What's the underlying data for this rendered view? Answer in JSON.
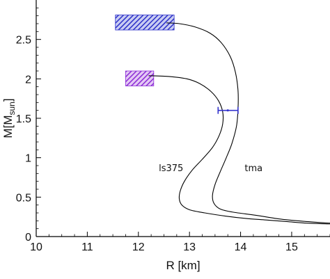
{
  "chart_data": {
    "type": "line",
    "xlabel": "R [km]",
    "ylabel": {
      "main": "M[M",
      "sub": "sun",
      "close": "]"
    },
    "xlim": [
      10,
      15.75
    ],
    "ylim": [
      0,
      3
    ],
    "xticks": [
      "10",
      "11",
      "12",
      "13",
      "14",
      "15"
    ],
    "yticks": [
      "0",
      "0.5",
      "1",
      "1.5",
      "2",
      "2.5"
    ],
    "series": [
      {
        "name": "ls375",
        "color": "#000000",
        "points": [
          [
            15.75,
            0.16
          ],
          [
            15.3,
            0.17
          ],
          [
            14.9,
            0.19
          ],
          [
            14.5,
            0.21
          ],
          [
            14.1,
            0.23
          ],
          [
            13.7,
            0.26
          ],
          [
            13.3,
            0.3
          ],
          [
            13.0,
            0.34
          ],
          [
            12.85,
            0.4
          ],
          [
            12.8,
            0.48
          ],
          [
            12.82,
            0.58
          ],
          [
            12.9,
            0.7
          ],
          [
            13.05,
            0.84
          ],
          [
            13.25,
            0.98
          ],
          [
            13.45,
            1.13
          ],
          [
            13.58,
            1.28
          ],
          [
            13.65,
            1.43
          ],
          [
            13.65,
            1.58
          ],
          [
            13.57,
            1.72
          ],
          [
            13.42,
            1.84
          ],
          [
            13.2,
            1.94
          ],
          [
            12.95,
            2.0
          ],
          [
            12.6,
            2.03
          ],
          [
            12.2,
            2.04
          ]
        ],
        "label_pos": [
          12.4,
          0.83
        ]
      },
      {
        "name": "tma",
        "color": "#000000",
        "points": [
          [
            15.75,
            0.17
          ],
          [
            15.3,
            0.19
          ],
          [
            14.8,
            0.22
          ],
          [
            14.3,
            0.27
          ],
          [
            13.85,
            0.31
          ],
          [
            13.6,
            0.35
          ],
          [
            13.48,
            0.42
          ],
          [
            13.45,
            0.52
          ],
          [
            13.5,
            0.66
          ],
          [
            13.6,
            0.82
          ],
          [
            13.72,
            1.0
          ],
          [
            13.83,
            1.18
          ],
          [
            13.92,
            1.4
          ],
          [
            13.95,
            1.62
          ],
          [
            13.95,
            1.85
          ],
          [
            13.9,
            2.08
          ],
          [
            13.8,
            2.28
          ],
          [
            13.62,
            2.46
          ],
          [
            13.4,
            2.58
          ],
          [
            13.1,
            2.66
          ],
          [
            12.8,
            2.7
          ],
          [
            12.55,
            2.71
          ]
        ],
        "label_pos": [
          14.08,
          0.83
        ]
      }
    ],
    "constraint_boxes": [
      {
        "x": [
          11.55,
          12.7
        ],
        "y": [
          2.62,
          2.81
        ],
        "color": "#2b2fc8"
      },
      {
        "x": [
          11.75,
          12.3
        ],
        "y": [
          1.91,
          2.1
        ],
        "color": "#8a2bd6"
      }
    ],
    "error_bar": {
      "x": 13.75,
      "x_err": [
        13.56,
        13.95
      ],
      "y": 1.6,
      "color": "#3333cc"
    }
  }
}
